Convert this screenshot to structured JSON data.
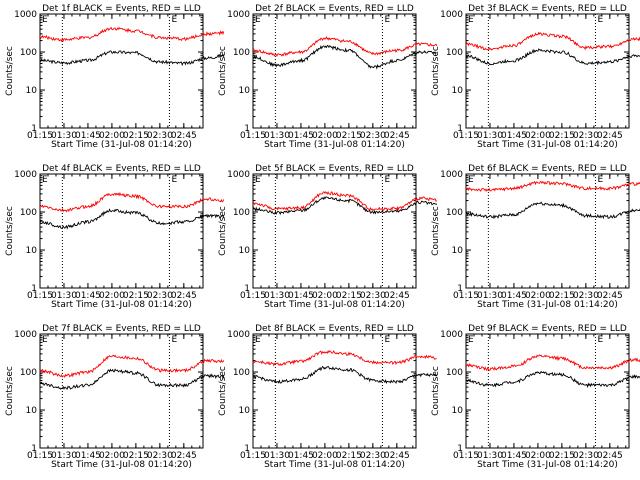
{
  "chart_data": [
    {
      "type": "line",
      "title": "Det 1f BLACK = Events, RED = LLD",
      "ylabel": "Counts/sec",
      "xlabel": "Start Time (31-Jul-08 01:14:20)",
      "x_ticks": [
        "01:15",
        "01:30",
        "01:45",
        "02:00",
        "02:15",
        "02:30",
        "02:45"
      ],
      "y_ticks": [
        "1",
        "10",
        "100",
        "1000"
      ],
      "ylim": [
        1,
        1000
      ],
      "yscale": "log",
      "markers": [
        "01:29",
        "02:36"
      ],
      "marker_labels": [
        "E",
        "E"
      ],
      "series": [
        {
          "color": "#000000",
          "values": [
            [
              0,
              60
            ],
            [
              15,
              52
            ],
            [
              30,
              60
            ],
            [
              45,
              100
            ],
            [
              60,
              95
            ],
            [
              75,
              55
            ],
            [
              90,
              50
            ],
            [
              105,
              70
            ],
            [
              115,
              80
            ]
          ]
        },
        {
          "color": "#ff0000",
          "values": [
            [
              0,
              250
            ],
            [
              15,
              210
            ],
            [
              30,
              240
            ],
            [
              45,
              420
            ],
            [
              60,
              360
            ],
            [
              75,
              240
            ],
            [
              90,
              220
            ],
            [
              105,
              300
            ],
            [
              115,
              320
            ]
          ]
        }
      ]
    },
    {
      "type": "line",
      "title": "Det 2f BLACK = Events, RED = LLD",
      "ylabel": "Counts/sec",
      "xlabel": "Start Time (31-Jul-08 01:14:20)",
      "x_ticks": [
        "01:15",
        "01:30",
        "01:45",
        "02:00",
        "02:15",
        "02:30",
        "02:45"
      ],
      "y_ticks": [
        "1",
        "10",
        "100",
        "1000"
      ],
      "ylim": [
        1,
        1000
      ],
      "yscale": "log",
      "markers": [
        "01:29",
        "02:36"
      ],
      "marker_labels": [
        "E",
        "E"
      ],
      "series": [
        {
          "color": "#000000",
          "values": [
            [
              0,
              75
            ],
            [
              15,
              45
            ],
            [
              30,
              60
            ],
            [
              45,
              140
            ],
            [
              60,
              110
            ],
            [
              75,
              40
            ],
            [
              90,
              60
            ],
            [
              105,
              100
            ],
            [
              115,
              95
            ]
          ]
        },
        {
          "color": "#ff0000",
          "values": [
            [
              0,
              110
            ],
            [
              15,
              85
            ],
            [
              30,
              100
            ],
            [
              45,
              230
            ],
            [
              60,
              190
            ],
            [
              75,
              90
            ],
            [
              90,
              110
            ],
            [
              105,
              160
            ],
            [
              115,
              150
            ]
          ]
        }
      ]
    },
    {
      "type": "line",
      "title": "Det 3f BLACK = Events, RED = LLD",
      "ylabel": "Counts/sec",
      "xlabel": "Start Time (31-Jul-08 01:14:20)",
      "x_ticks": [
        "01:15",
        "01:30",
        "01:45",
        "02:00",
        "02:15",
        "02:30",
        "02:45"
      ],
      "y_ticks": [
        "1",
        "10",
        "100",
        "1000"
      ],
      "ylim": [
        1,
        1000
      ],
      "yscale": "log",
      "markers": [
        "01:29",
        "02:36"
      ],
      "marker_labels": [
        "E",
        "E"
      ],
      "series": [
        {
          "color": "#000000",
          "values": [
            [
              0,
              80
            ],
            [
              15,
              50
            ],
            [
              30,
              60
            ],
            [
              45,
              110
            ],
            [
              60,
              100
            ],
            [
              75,
              50
            ],
            [
              90,
              55
            ],
            [
              105,
              80
            ],
            [
              115,
              75
            ]
          ]
        },
        {
          "color": "#ff0000",
          "values": [
            [
              0,
              160
            ],
            [
              15,
              120
            ],
            [
              30,
              150
            ],
            [
              45,
              300
            ],
            [
              60,
              260
            ],
            [
              75,
              130
            ],
            [
              90,
              140
            ],
            [
              105,
              220
            ],
            [
              115,
              210
            ]
          ]
        }
      ]
    },
    {
      "type": "line",
      "title": "Det 4f BLACK = Events, RED = LLD",
      "ylabel": "Counts/sec",
      "xlabel": "Start Time (31-Jul-08 01:14:20)",
      "x_ticks": [
        "01:15",
        "01:30",
        "01:45",
        "02:00",
        "02:15",
        "02:30",
        "02:45"
      ],
      "y_ticks": [
        "1",
        "10",
        "100",
        "1000"
      ],
      "ylim": [
        1,
        1000
      ],
      "yscale": "log",
      "markers": [
        "01:29",
        "02:36"
      ],
      "marker_labels": [
        "E",
        "E"
      ],
      "series": [
        {
          "color": "#000000",
          "values": [
            [
              0,
              55
            ],
            [
              15,
              40
            ],
            [
              30,
              55
            ],
            [
              45,
              110
            ],
            [
              60,
              95
            ],
            [
              75,
              50
            ],
            [
              90,
              55
            ],
            [
              105,
              80
            ],
            [
              115,
              75
            ]
          ]
        },
        {
          "color": "#ff0000",
          "values": [
            [
              0,
              140
            ],
            [
              15,
              110
            ],
            [
              30,
              140
            ],
            [
              45,
              300
            ],
            [
              60,
              260
            ],
            [
              75,
              140
            ],
            [
              90,
              140
            ],
            [
              105,
              220
            ],
            [
              115,
              200
            ]
          ]
        }
      ]
    },
    {
      "type": "line",
      "title": "Det 5f BLACK = Events, RED = LLD",
      "ylabel": "Counts/sec",
      "xlabel": "Start Time (31-Jul-08 01:14:20)",
      "x_ticks": [
        "01:15",
        "01:30",
        "01:45",
        "02:00",
        "02:15",
        "02:30",
        "02:45"
      ],
      "y_ticks": [
        "1",
        "10",
        "100",
        "1000"
      ],
      "ylim": [
        1,
        1000
      ],
      "yscale": "log",
      "markers": [
        "01:29",
        "02:36"
      ],
      "marker_labels": [
        "E",
        "E"
      ],
      "series": [
        {
          "color": "#000000",
          "values": [
            [
              0,
              120
            ],
            [
              15,
              95
            ],
            [
              30,
              110
            ],
            [
              45,
              230
            ],
            [
              60,
              200
            ],
            [
              75,
              100
            ],
            [
              90,
              105
            ],
            [
              105,
              180
            ],
            [
              115,
              160
            ]
          ]
        },
        {
          "color": "#ff0000",
          "values": [
            [
              0,
              170
            ],
            [
              15,
              120
            ],
            [
              30,
              130
            ],
            [
              45,
              320
            ],
            [
              60,
              270
            ],
            [
              75,
              120
            ],
            [
              90,
              125
            ],
            [
              105,
              230
            ],
            [
              115,
              210
            ]
          ]
        }
      ]
    },
    {
      "type": "line",
      "title": "Det 6f BLACK = Events, RED = LLD",
      "ylabel": "Counts/sec",
      "xlabel": "Start Time (31-Jul-08 01:14:20)",
      "x_ticks": [
        "01:15",
        "01:30",
        "01:45",
        "02:00",
        "02:15",
        "02:30",
        "02:45"
      ],
      "y_ticks": [
        "1",
        "10",
        "100",
        "1000"
      ],
      "ylim": [
        1,
        1000
      ],
      "yscale": "log",
      "markers": [
        "01:29",
        "02:36"
      ],
      "marker_labels": [
        "E",
        "E"
      ],
      "series": [
        {
          "color": "#000000",
          "values": [
            [
              0,
              90
            ],
            [
              15,
              75
            ],
            [
              30,
              85
            ],
            [
              45,
              170
            ],
            [
              60,
              150
            ],
            [
              75,
              80
            ],
            [
              90,
              75
            ],
            [
              105,
              110
            ],
            [
              115,
              150
            ]
          ]
        },
        {
          "color": "#ff0000",
          "values": [
            [
              0,
              400
            ],
            [
              15,
              380
            ],
            [
              30,
              420
            ],
            [
              45,
              600
            ],
            [
              60,
              560
            ],
            [
              75,
              420
            ],
            [
              90,
              420
            ],
            [
              105,
              550
            ],
            [
              115,
              600
            ]
          ]
        }
      ]
    },
    {
      "type": "line",
      "title": "Det 7f BLACK = Events, RED = LLD",
      "ylabel": "Counts/sec",
      "xlabel": "Start Time (31-Jul-08 01:14:20)",
      "x_ticks": [
        "01:15",
        "01:30",
        "01:45",
        "02:00",
        "02:15",
        "02:30",
        "02:45"
      ],
      "y_ticks": [
        "1",
        "10",
        "100",
        "1000"
      ],
      "ylim": [
        1,
        1000
      ],
      "yscale": "log",
      "markers": [
        "01:29",
        "02:36"
      ],
      "marker_labels": [
        "E",
        "E"
      ],
      "series": [
        {
          "color": "#000000",
          "values": [
            [
              0,
              50
            ],
            [
              15,
              38
            ],
            [
              30,
              45
            ],
            [
              45,
              110
            ],
            [
              60,
              95
            ],
            [
              75,
              45
            ],
            [
              90,
              45
            ],
            [
              105,
              80
            ],
            [
              115,
              75
            ]
          ]
        },
        {
          "color": "#ff0000",
          "values": [
            [
              0,
              110
            ],
            [
              15,
              80
            ],
            [
              30,
              100
            ],
            [
              45,
              260
            ],
            [
              60,
              230
            ],
            [
              75,
              110
            ],
            [
              90,
              110
            ],
            [
              105,
              200
            ],
            [
              115,
              190
            ]
          ]
        }
      ]
    },
    {
      "type": "line",
      "title": "Det 8f BLACK = Events, RED = LLD",
      "ylabel": "Counts/sec",
      "xlabel": "Start Time (31-Jul-08 01:14:20)",
      "x_ticks": [
        "01:15",
        "01:30",
        "01:45",
        "02:00",
        "02:15",
        "02:30",
        "02:45"
      ],
      "y_ticks": [
        "1",
        "10",
        "100",
        "1000"
      ],
      "ylim": [
        1,
        1000
      ],
      "yscale": "log",
      "markers": [
        "01:29",
        "02:36"
      ],
      "marker_labels": [
        "E",
        "E"
      ],
      "series": [
        {
          "color": "#000000",
          "values": [
            [
              0,
              75
            ],
            [
              15,
              55
            ],
            [
              30,
              65
            ],
            [
              45,
              130
            ],
            [
              60,
              115
            ],
            [
              75,
              60
            ],
            [
              90,
              55
            ],
            [
              105,
              85
            ],
            [
              115,
              80
            ]
          ]
        },
        {
          "color": "#ff0000",
          "values": [
            [
              0,
              190
            ],
            [
              15,
              160
            ],
            [
              30,
              190
            ],
            [
              45,
              340
            ],
            [
              60,
              300
            ],
            [
              75,
              180
            ],
            [
              90,
              175
            ],
            [
              105,
              260
            ],
            [
              115,
              240
            ]
          ]
        }
      ]
    },
    {
      "type": "line",
      "title": "Det 9f BLACK = Events, RED = LLD",
      "ylabel": "Counts/sec",
      "xlabel": "Start Time (31-Jul-08 01:14:20)",
      "x_ticks": [
        "01:15",
        "01:30",
        "01:45",
        "02:00",
        "02:15",
        "02:30",
        "02:45"
      ],
      "y_ticks": [
        "1",
        "10",
        "100",
        "1000"
      ],
      "ylim": [
        1,
        1000
      ],
      "yscale": "log",
      "markers": [
        "01:29",
        "02:36"
      ],
      "marker_labels": [
        "E",
        "E"
      ],
      "series": [
        {
          "color": "#000000",
          "values": [
            [
              0,
              60
            ],
            [
              15,
              45
            ],
            [
              30,
              55
            ],
            [
              45,
              95
            ],
            [
              60,
              85
            ],
            [
              75,
              45
            ],
            [
              90,
              45
            ],
            [
              105,
              75
            ],
            [
              115,
              70
            ]
          ]
        },
        {
          "color": "#ff0000",
          "values": [
            [
              0,
              150
            ],
            [
              15,
              120
            ],
            [
              30,
              140
            ],
            [
              45,
              260
            ],
            [
              60,
              230
            ],
            [
              75,
              130
            ],
            [
              90,
              130
            ],
            [
              105,
              210
            ],
            [
              115,
              200
            ]
          ]
        }
      ]
    }
  ]
}
